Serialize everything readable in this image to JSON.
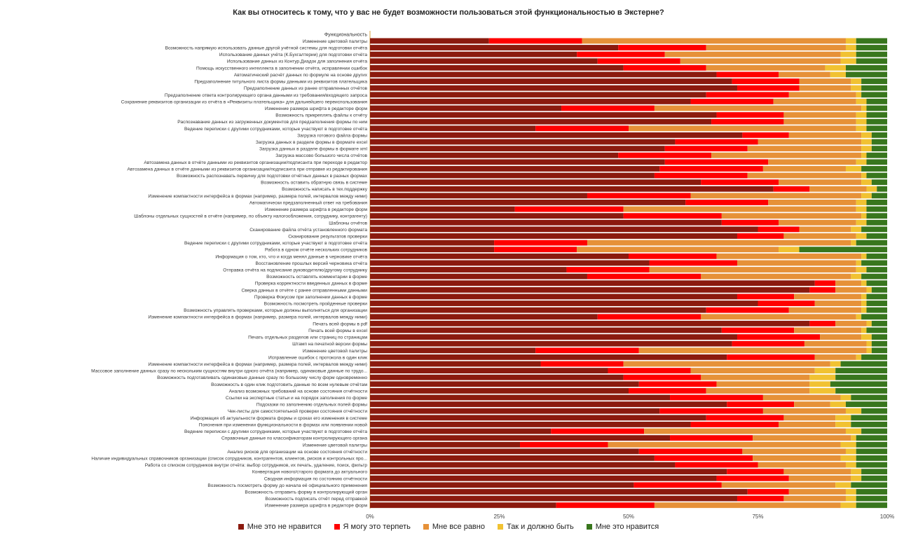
{
  "colors": {
    "s1": "#8b1a0e",
    "s2": "#ff0000",
    "s3": "#e69138",
    "s4": "#f1c232",
    "s5": "#38761d"
  },
  "chart_data": {
    "type": "bar",
    "orientation": "horizontal",
    "stacked": "percent",
    "title": "Как вы относитесь к тому, что у вас не будет возможности пользоваться этой функциональностью в Экстерне?",
    "xlim": [
      0,
      100
    ],
    "xticks": [
      "0%",
      "25%",
      "50%",
      "75%",
      "100%"
    ],
    "legend_position": "bottom",
    "header_row": "Функциональность",
    "series": [
      {
        "name": "Мне это не нравится",
        "color_key": "s1"
      },
      {
        "name": "Я могу это терпеть",
        "color_key": "s2"
      },
      {
        "name": "Мне все равно",
        "color_key": "s3"
      },
      {
        "name": "Так и должно быть",
        "color_key": "s4"
      },
      {
        "name": "Мне это нравится",
        "color_key": "s5"
      }
    ],
    "rows": [
      {
        "label": "Изменение цветовой палитры",
        "v": [
          23,
          18,
          51,
          2,
          6
        ]
      },
      {
        "label": "Возможность напрямую использовать данные другой учётной системы для подготовки отчёта",
        "v": [
          48,
          17,
          27,
          2,
          6
        ]
      },
      {
        "label": "Использование данных учёта (К.Бухгалтерии) для подготовки отчёта",
        "v": [
          40,
          17,
          34,
          3,
          6
        ]
      },
      {
        "label": "Использование данных из Контур.Диадок для заполнения отчёта",
        "v": [
          44,
          16,
          31,
          3,
          6
        ]
      },
      {
        "label": "Помощь искусственного интеллекта в заполнении отчёта, исправлении ошибок",
        "v": [
          49,
          16,
          23,
          4,
          8
        ]
      },
      {
        "label": "Автоматический расчёт данных по формуле на основе других",
        "v": [
          67,
          12,
          10,
          3,
          8
        ]
      },
      {
        "label": "Предзаполнение титульного листа формы данными из реквизитов плательщика",
        "v": [
          70,
          13,
          10,
          2,
          5
        ]
      },
      {
        "label": "Предзаполнение данных из ранее отправленных отчётов",
        "v": [
          71,
          12,
          10,
          2,
          5
        ]
      },
      {
        "label": "Предзаполнение ответа контролирующего органа данными из требования/входящего запроса",
        "v": [
          65,
          16,
          13,
          1,
          5
        ]
      },
      {
        "label": "Сохранение реквизитов организации из отчёта в «Реквизиты плательщика» для дальнейшего переиспользования",
        "v": [
          62,
          16,
          16,
          2,
          4
        ]
      },
      {
        "label": "Изменение размера шрифта в редакторе форм",
        "v": [
          37,
          18,
          40,
          1,
          4
        ]
      },
      {
        "label": "Возможность прикреплять файлы к отчёту",
        "v": [
          67,
          13,
          14,
          2,
          4
        ]
      },
      {
        "label": "Распознавание данных из загруженных документов для предзаполнения формы по ним",
        "v": [
          66,
          14,
          14,
          2,
          4
        ]
      },
      {
        "label": "Ведение переписки с другими сотрудниками, которые участвуют в подготовке отчёта",
        "v": [
          32,
          18,
          44,
          2,
          4
        ]
      },
      {
        "label": "Загрузка готового файла формы",
        "v": [
          72,
          9,
          14,
          2,
          3
        ]
      },
      {
        "label": "Загрузка данных в разделе формы в формате excel",
        "v": [
          59,
          16,
          20,
          2,
          3
        ]
      },
      {
        "label": "Загрузка данных в разделе формы в формате xml",
        "v": [
          57,
          16,
          22,
          2,
          3
        ]
      },
      {
        "label": "Загрузка массово большого числа отчётов",
        "v": [
          48,
          18,
          29,
          1,
          4
        ]
      },
      {
        "label": "Автозамена данных в отчёте данными из реквизитов организации/подписанта при переходе в редактор",
        "v": [
          57,
          20,
          17,
          2,
          4
        ]
      },
      {
        "label": "Автозамена данных в отчёте данными из реквизитов организации/подписанта при отправке из редактирования",
        "v": [
          56,
          20,
          16,
          3,
          5
        ]
      },
      {
        "label": "Возможность распознавать первичку для подготовки отчётных данных в разных формах",
        "v": [
          55,
          18,
          22,
          1,
          4
        ]
      },
      {
        "label": "Возможность оставить обратную связь в системе",
        "v": [
          64,
          15,
          16,
          2,
          3
        ]
      },
      {
        "label": "Возможность написать в тех.поддержку",
        "v": [
          78,
          7,
          11,
          2,
          2
        ]
      },
      {
        "label": "Изменение компактности интерфейса в формах (например, размера полей, интервалов между ними)",
        "v": [
          42,
          20,
          33,
          2,
          3
        ]
      },
      {
        "label": "Автоматически предзаполненный ответ на требования",
        "v": [
          61,
          16,
          17,
          2,
          4
        ]
      },
      {
        "label": "Изменение размера шрифта в редакторе форм",
        "v": [
          28,
          21,
          45,
          2,
          4
        ]
      },
      {
        "label": "Шаблоны отдельных сущностей в отчёте (например, по объекту налогообложения, сотруднику, контрагенту)",
        "v": [
          49,
          19,
          27,
          1,
          4
        ]
      },
      {
        "label": "Шаблоны отчётов",
        "v": [
          68,
          11,
          15,
          2,
          4
        ]
      },
      {
        "label": "Сканирование файла отчёта установленного формата",
        "v": [
          75,
          8,
          10,
          2,
          5
        ]
      },
      {
        "label": "Сканирование результатов проверки",
        "v": [
          71,
          9,
          14,
          2,
          4
        ]
      },
      {
        "label": "Ведение переписки с другими сотрудниками, которые участвуют в подготовке отчёта",
        "v": [
          24,
          18,
          51,
          1,
          6
        ]
      },
      {
        "label": "Работа в одном отчёте нескольких сотрудников",
        "v": [
          24,
          16,
          39,
          4,
          17
        ]
      },
      {
        "label": "Информация о том, кто, что и когда менял данные в черновике отчёта",
        "v": [
          50,
          17,
          28,
          1,
          4
        ]
      },
      {
        "label": "Восстановление прошлых версий черновика отчёта",
        "v": [
          54,
          17,
          23,
          1,
          5
        ]
      },
      {
        "label": "Отправка отчёта на подписание руководителю/другому сотруднику",
        "v": [
          38,
          16,
          40,
          2,
          4
        ]
      },
      {
        "label": "Возможность оставлять комментарии в форме",
        "v": [
          42,
          22,
          29,
          2,
          5
        ]
      },
      {
        "label": "Проверка корректности введенных данных в форме",
        "v": [
          86,
          4,
          5,
          1,
          4
        ]
      },
      {
        "label": "Сверка данных в отчёте с ранее отправленными данными",
        "v": [
          85,
          5,
          6,
          1,
          3
        ]
      },
      {
        "label": "Проверка Фокусом при заполнении данных в форме",
        "v": [
          71,
          11,
          13,
          1,
          4
        ]
      },
      {
        "label": "Возможность посмотреть пройденные проверки",
        "v": [
          75,
          11,
          9,
          1,
          4
        ]
      },
      {
        "label": "Возможность управлять проверками, которые должны выполняться для организации",
        "v": [
          65,
          16,
          14,
          1,
          4
        ]
      },
      {
        "label": "Изменение компактности интерфейса в формах (например, размера полей, интервалов между ними)",
        "v": [
          44,
          20,
          30,
          1,
          5
        ]
      },
      {
        "label": "Печать всей формы в pdf",
        "v": [
          85,
          5,
          6,
          1,
          3
        ]
      },
      {
        "label": "Печать всей формы в excel",
        "v": [
          68,
          14,
          13,
          1,
          4
        ]
      },
      {
        "label": "Печать отдельных разделов или страниц по страницам",
        "v": [
          71,
          16,
          8,
          2,
          3
        ]
      },
      {
        "label": "Штамп на печатной версии формы",
        "v": [
          70,
          14,
          12,
          1,
          3
        ]
      },
      {
        "label": "Изменение цветовой палитры",
        "v": [
          32,
          20,
          44,
          1,
          3
        ]
      },
      {
        "label": "Исправление ошибок с протокола в один клик",
        "v": [
          69,
          17,
          8,
          1,
          5
        ]
      },
      {
        "label": "Изменение компактности интерфейса в формах (например, размера полей, интервалов между ними)",
        "v": [
          33,
          16,
          40,
          2,
          9
        ]
      },
      {
        "label": "Массовое заполнение данных сразу по нескольким сущностям внутри одного отчёта (например, одинаковые данные по трудо...",
        "v": [
          46,
          16,
          24,
          4,
          10
        ]
      },
      {
        "label": "Возможность подготавливать одинаковые данные сразу по большому числу форм одновременно",
        "v": [
          49,
          15,
          21,
          5,
          10
        ]
      },
      {
        "label": "Возможность в один клик подготовить данные по всем нулевым отчётам",
        "v": [
          52,
          15,
          18,
          4,
          11
        ]
      },
      {
        "label": "Анализ возможных требований на основе состояния отчётности",
        "v": [
          50,
          15,
          20,
          5,
          10
        ]
      },
      {
        "label": "Ссылки на экспертные статьи и на порядок заполнения по форме",
        "v": [
          58,
          18,
          15,
          2,
          7
        ]
      },
      {
        "label": "Подсказки по заполнению отдельных полей формы",
        "v": [
          69,
          13,
          7,
          3,
          8
        ]
      },
      {
        "label": "Чек-листы для самостоятельной проверки состояния отчётности",
        "v": [
          56,
          20,
          16,
          3,
          5
        ]
      },
      {
        "label": "Информация об актуальности формата формы и сроках его изменения в системе",
        "v": [
          65,
          15,
          10,
          3,
          7
        ]
      },
      {
        "label": "Пояснения при изменении функциональности в формах или появлении новой",
        "v": [
          62,
          17,
          11,
          3,
          7
        ]
      },
      {
        "label": "Ведение переписки с другими сотрудниками, которые участвуют в подготовке отчёта",
        "v": [
          35,
          18,
          39,
          3,
          5
        ]
      },
      {
        "label": "Справочные данные по классификаторам контролирующего органа",
        "v": [
          58,
          16,
          19,
          1,
          6
        ]
      },
      {
        "label": "Изменение цветовой палитры",
        "v": [
          29,
          17,
          45,
          3,
          6
        ]
      },
      {
        "label": "Анализ рисков для организации на основе состояния отчётности",
        "v": [
          52,
          20,
          20,
          2,
          6
        ]
      },
      {
        "label": "Наличие индивидуальных справочников организации (список сотрудников, контрагентов, клиентов, рисков и контрольных про...",
        "v": [
          55,
          19,
          17,
          3,
          6
        ]
      },
      {
        "label": "Работа со списком сотрудников внутри отчёта: выбор сотрудников, их печать, удаление, поиск, фильтр",
        "v": [
          59,
          16,
          17,
          2,
          6
        ]
      },
      {
        "label": "Конвертация нового/старого формата до актуального",
        "v": [
          69,
          11,
          13,
          2,
          5
        ]
      },
      {
        "label": "Сводная информация по состоянию отчётности",
        "v": [
          67,
          14,
          12,
          2,
          5
        ]
      },
      {
        "label": "Возможность посмотреть форму до начала её официального применения",
        "v": [
          51,
          17,
          22,
          3,
          7
        ]
      },
      {
        "label": "Возможность отправить форму в контролирующий орган",
        "v": [
          73,
          8,
          11,
          2,
          6
        ]
      },
      {
        "label": "Возможность подписать отчёт перед отправкой",
        "v": [
          71,
          9,
          12,
          2,
          6
        ]
      },
      {
        "label": "Изменение размера шрифта в редакторе форм",
        "v": [
          36,
          19,
          36,
          3,
          6
        ]
      }
    ]
  }
}
